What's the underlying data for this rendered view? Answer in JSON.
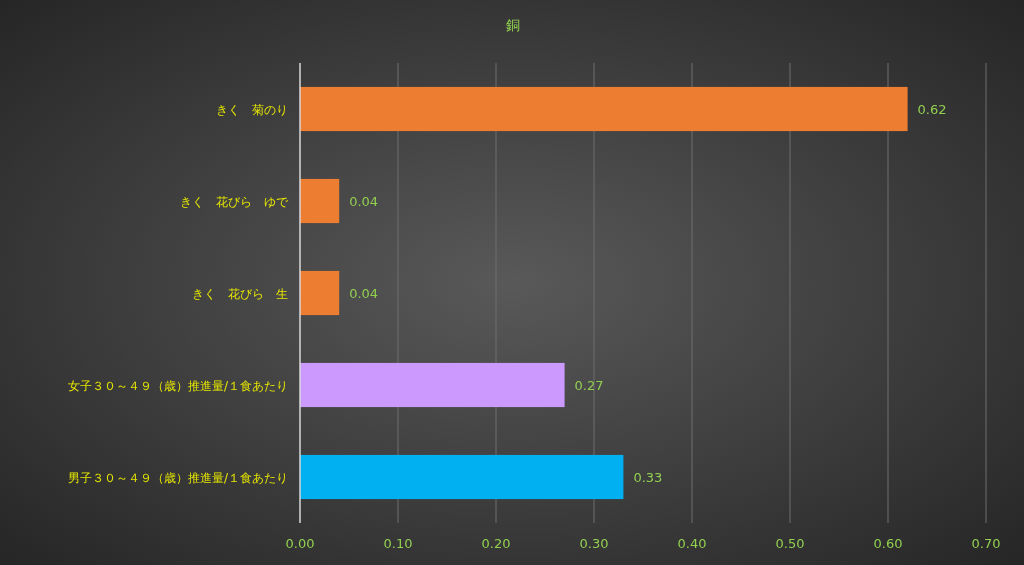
{
  "chart_data": {
    "type": "bar",
    "title": "銅",
    "orientation": "horizontal",
    "categories": [
      "きく　菊のり",
      "きく　花びら　ゆで",
      "きく　花びら　生",
      "女子３０～４９（歳）推進量/１食あたり",
      "男子３０～４９（歳）推進量/１食あたり"
    ],
    "values": [
      0.62,
      0.04,
      0.04,
      0.27,
      0.33
    ],
    "colors": [
      "#ed7d31",
      "#ed7d31",
      "#ed7d31",
      "#cc99ff",
      "#00b0f0"
    ],
    "xlim": [
      0,
      0.7
    ],
    "xticks": [
      {
        "value": 0,
        "label": "0.00"
      },
      {
        "value": 0.1,
        "label": "0.10"
      },
      {
        "value": 0.2,
        "label": "0.20"
      },
      {
        "value": 0.3,
        "label": "0.30"
      },
      {
        "value": 0.4,
        "label": "0.40"
      },
      {
        "value": 0.5,
        "label": "0.50"
      },
      {
        "value": 0.6,
        "label": "0.60"
      },
      {
        "value": 0.7,
        "label": "0.70"
      }
    ],
    "grid": "x",
    "data_labels": true
  }
}
